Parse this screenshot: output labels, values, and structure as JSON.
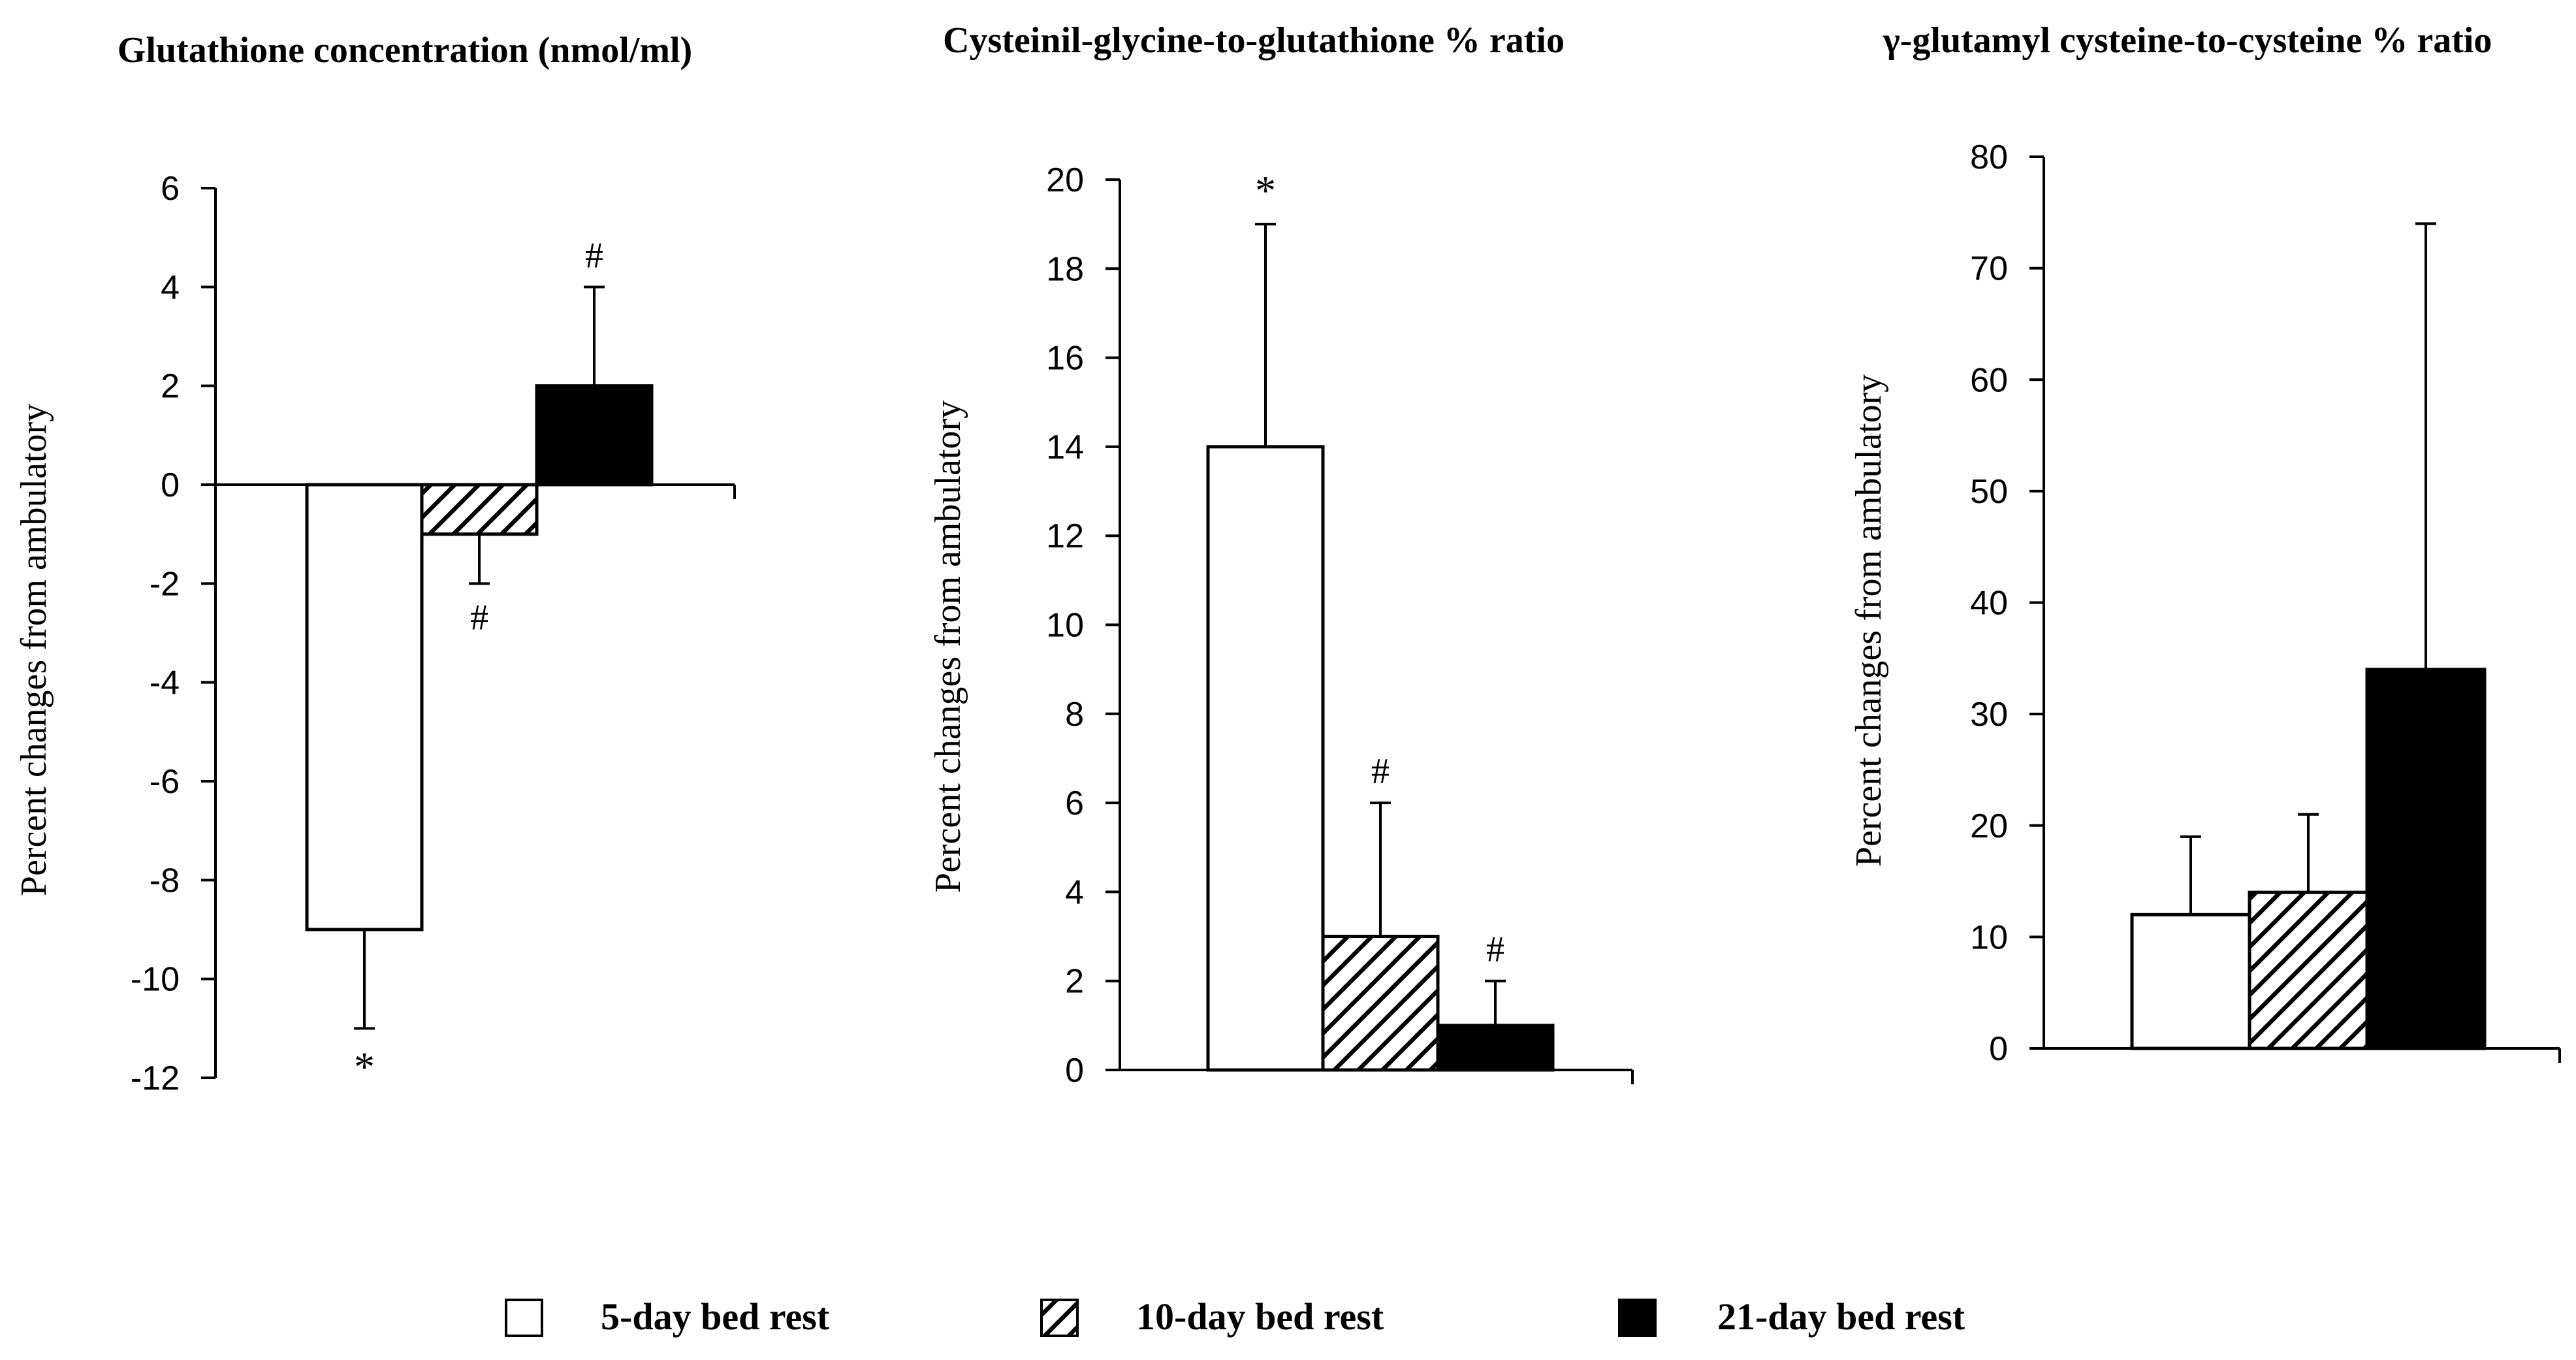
{
  "legend": [
    {
      "label": "5-day bed rest",
      "pattern": "white"
    },
    {
      "label": "10-day bed rest",
      "pattern": "hatch"
    },
    {
      "label": "21-day bed rest",
      "pattern": "black"
    }
  ],
  "colors": {
    "ink": "#000000",
    "paper": "#ffffff"
  },
  "chart_data": [
    {
      "type": "bar",
      "title": "Glutathione  concentration  (nmol/ml)",
      "ylabel": "Percent  changes  from  ambulatory",
      "ylim": [
        -12,
        6
      ],
      "yticks": [
        6,
        4,
        2,
        0,
        -2,
        -4,
        -6,
        -8,
        -10,
        -12
      ],
      "categories": [
        "5-day bed rest",
        "10-day bed rest",
        "21-day bed rest"
      ],
      "values": [
        -9,
        -1,
        2
      ],
      "errors": [
        2,
        1,
        2
      ],
      "annotations": [
        "*",
        "#",
        "#"
      ]
    },
    {
      "type": "bar",
      "title": "Cysteinil-glycine-to-glutathione  % ratio",
      "ylabel": "Percent  changes  from  ambulatory",
      "ylim": [
        0,
        20
      ],
      "yticks": [
        20,
        18,
        16,
        14,
        12,
        10,
        8,
        6,
        4,
        2,
        0
      ],
      "categories": [
        "5-day bed rest",
        "10-day bed rest",
        "21-day bed rest"
      ],
      "values": [
        14,
        3,
        1
      ],
      "errors": [
        5,
        3,
        1
      ],
      "annotations": [
        "*",
        "#",
        "#"
      ]
    },
    {
      "type": "bar",
      "title": "γ-glutamyl  cysteine-to-cysteine % ratio",
      "ylabel": "Percent  changes  from  ambulatory",
      "ylim": [
        0,
        80
      ],
      "yticks": [
        80,
        70,
        60,
        50,
        40,
        30,
        20,
        10,
        0
      ],
      "categories": [
        "5-day bed rest",
        "10-day bed rest",
        "21-day bed rest"
      ],
      "values": [
        12,
        14,
        34
      ],
      "errors": [
        7,
        7,
        40
      ],
      "annotations": [
        "",
        "",
        ""
      ]
    }
  ]
}
